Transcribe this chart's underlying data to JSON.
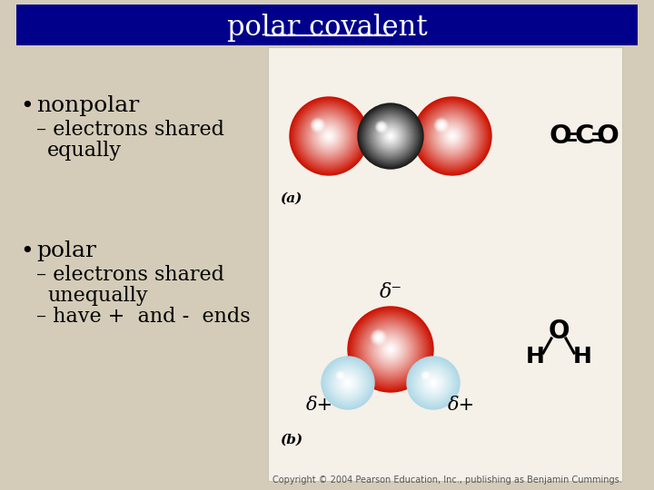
{
  "title": "polar covalent",
  "title_bg": "#00008B",
  "title_color": "#FFFFFF",
  "bg_color": "#D4CCB8",
  "image_panel_bg": "#F5F0E8",
  "bullet1_main": "nonpolar",
  "bullet1_sub1": "– electrons shared",
  "bullet1_sub2": "  equally",
  "bullet2_main": "polar",
  "bullet2_sub1": "– electrons shared",
  "bullet2_sub2": "  unequally",
  "bullet2_sub3": "– have +  and -  ends",
  "label_a": "(a)",
  "label_b": "(b)",
  "delta_minus": "δ⁻",
  "delta_plus": "δ+",
  "copyright": "Copyright © 2004 Pearson Education, Inc., publishing as Benjamin Cummings.",
  "text_color": "#000000",
  "font_size_title": 22,
  "font_size_bullet_main": 18,
  "font_size_bullet_sub": 16,
  "font_size_formula": 20,
  "font_size_label": 11,
  "font_size_delta": 15,
  "font_size_copyright": 7,
  "red_sphere": "#CC1100",
  "black_sphere": "#1A1A1A",
  "blue_sphere": "#ADD8E6"
}
